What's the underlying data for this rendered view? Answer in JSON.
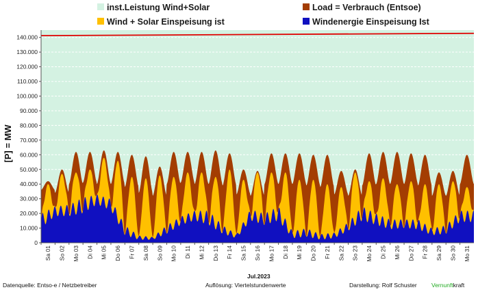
{
  "chart_data": {
    "type": "area",
    "ylabel": "[P] = MW",
    "xlabel": "Jul.2023",
    "ylim": [
      0,
      145000
    ],
    "yticks": [
      0,
      10000,
      20000,
      30000,
      40000,
      50000,
      60000,
      70000,
      80000,
      90000,
      100000,
      110000,
      120000,
      130000,
      140000
    ],
    "ytick_labels": [
      "0",
      "10.000",
      "20.000",
      "30.000",
      "40.000",
      "50.000",
      "60.000",
      "70.000",
      "80.000",
      "90.000",
      "100.000",
      "110.000",
      "120.000",
      "130.000",
      "140.000"
    ],
    "x_labels": [
      "Sa 01",
      "So 02",
      "Mo 03",
      "Di 04",
      "Mi 05",
      "Do 06",
      "Fr 07",
      "Sa 08",
      "So 09",
      "Mo 10",
      "Di 11",
      "Mi 12",
      "Do 13",
      "Fr 14",
      "Sa 15",
      "So 16",
      "Mo 17",
      "Di 18",
      "Mi 19",
      "Do 20",
      "Fr 21",
      "Sa 22",
      "So 23",
      "Mo 24",
      "Di 25",
      "Mi 26",
      "Do 27",
      "Fr 28",
      "Sa 29",
      "So 30",
      "Mo 31"
    ],
    "grid": true,
    "legend_position": "top",
    "series": [
      {
        "name": "inst.Leistung Wind+Solar",
        "color": "#d4f2e2",
        "line_color": "#e00000",
        "start": 141200,
        "end": 142800
      },
      {
        "name": "Load =  Verbrauch (Entsoe)",
        "color": "#a33d02",
        "day_max": [
          42000,
          50000,
          62000,
          62000,
          63000,
          62000,
          60000,
          59000,
          52000,
          62000,
          62000,
          62000,
          63000,
          61000,
          50000,
          49000,
          61000,
          61000,
          61000,
          60000,
          60000,
          49000,
          50000,
          61000,
          62000,
          62000,
          61000,
          60000,
          48000,
          49000,
          60000
        ],
        "day_min": [
          36000,
          34000,
          40000,
          41000,
          40000,
          40000,
          38000,
          34000,
          32000,
          40000,
          41000,
          40000,
          40000,
          39000,
          33000,
          32000,
          40000,
          40000,
          40000,
          39000,
          38000,
          33000,
          32000,
          39000,
          40000,
          40000,
          40000,
          39000,
          32000,
          32000,
          40000
        ]
      },
      {
        "name": "Wind + Solar Einspeisung ist",
        "color": "#ffc000",
        "day_max": [
          40000,
          47000,
          48000,
          50000,
          58000,
          56000,
          45000,
          44000,
          46000,
          45000,
          48000,
          48000,
          45000,
          50000,
          43000,
          48000,
          48000,
          48000,
          43000,
          43000,
          40000,
          38000,
          48000,
          42000,
          44000,
          40000,
          42000,
          40000,
          40000,
          42000,
          38000
        ]
      },
      {
        "name": "Windenergie Einspeisung Ist",
        "color": "#1010c0",
        "day_max": [
          20000,
          25000,
          26000,
          31000,
          33000,
          30000,
          12000,
          5000,
          4000,
          12000,
          18000,
          22000,
          22000,
          12000,
          6000,
          23000,
          20000,
          25000,
          8000,
          10000,
          6000,
          7000,
          14000,
          25000,
          20000,
          16000,
          16000,
          16000,
          10000,
          12000,
          22000
        ],
        "day_min": [
          10000,
          18000,
          18000,
          20000,
          26000,
          22000,
          5000,
          2000,
          2000,
          6000,
          12000,
          15000,
          12000,
          6000,
          3000,
          15000,
          12000,
          15000,
          3000,
          4000,
          2000,
          3000,
          8000,
          15000,
          12000,
          9000,
          10000,
          9000,
          5000,
          6000,
          14000
        ]
      }
    ]
  },
  "footer": {
    "source": "Datenquelle:  Entso-e  / Netzbetreiber",
    "resolution": "Auflösung:  Viertelstundenwerte",
    "author": "Darstellung:  Rolf Schuster",
    "brand_a": "Vernunft",
    "brand_b": "kraft"
  }
}
